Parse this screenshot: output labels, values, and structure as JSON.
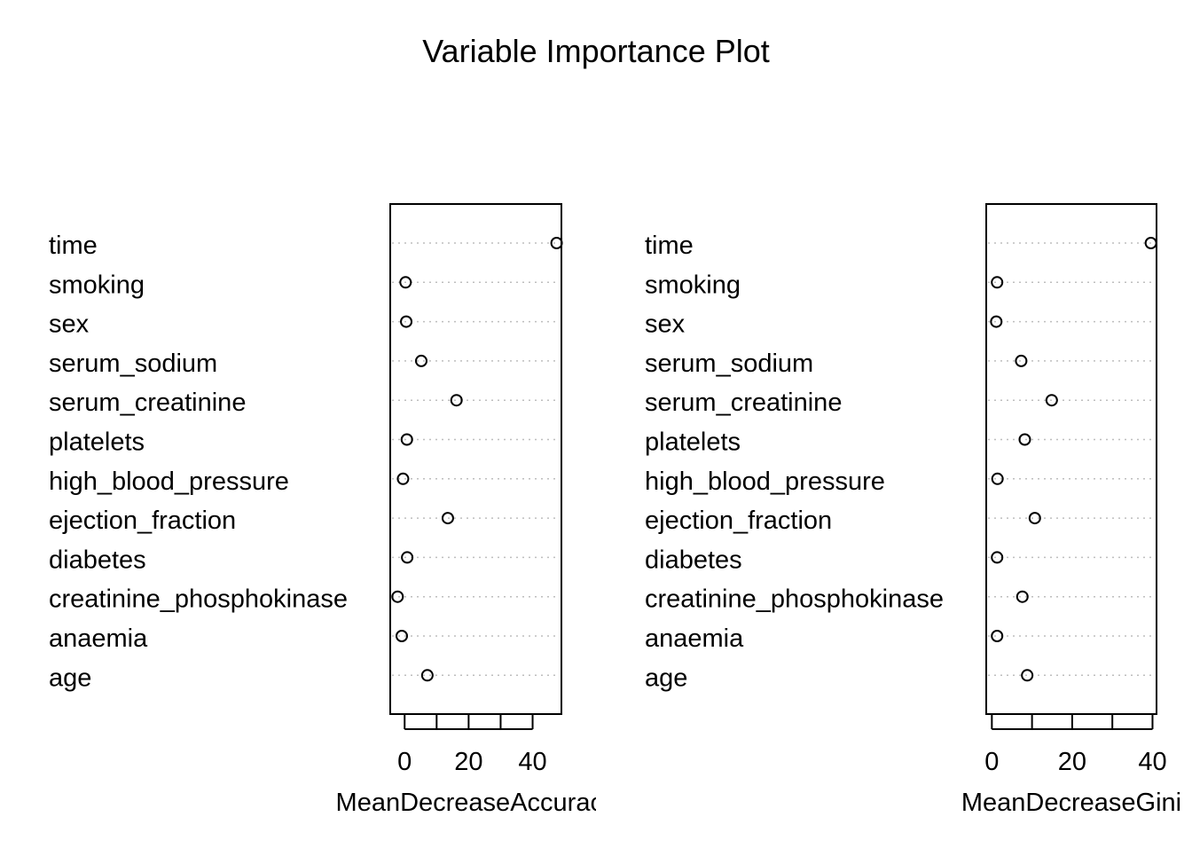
{
  "title": "Variable Importance Plot",
  "chart_data": [
    {
      "type": "scatter",
      "variables": [
        "time",
        "smoking",
        "sex",
        "serum_sodium",
        "serum_creatinine",
        "platelets",
        "high_blood_pressure",
        "ejection_fraction",
        "diabetes",
        "creatinine_phosphokinase",
        "anaemia",
        "age"
      ],
      "values": [
        47.5,
        0.3,
        0.5,
        5.2,
        16.2,
        0.7,
        -0.5,
        13.5,
        0.8,
        -2.2,
        -0.9,
        7.1
      ],
      "xlabel": "MeanDecreaseAccuracy",
      "xticks": [
        0,
        20,
        40
      ],
      "xlim": [
        -4.5,
        49.0
      ],
      "grid": "dotted horizontal"
    },
    {
      "type": "scatter",
      "variables": [
        "time",
        "smoking",
        "sex",
        "serum_sodium",
        "serum_creatinine",
        "platelets",
        "high_blood_pressure",
        "ejection_fraction",
        "diabetes",
        "creatinine_phosphokinase",
        "anaemia",
        "age"
      ],
      "values": [
        39.6,
        1.3,
        1.1,
        7.3,
        14.9,
        8.2,
        1.4,
        10.7,
        1.3,
        7.6,
        1.3,
        8.8
      ],
      "xlabel": "MeanDecreaseGini",
      "xticks": [
        0,
        20,
        40
      ],
      "xlim": [
        -1.4,
        41.0
      ],
      "grid": "dotted horizontal"
    }
  ]
}
